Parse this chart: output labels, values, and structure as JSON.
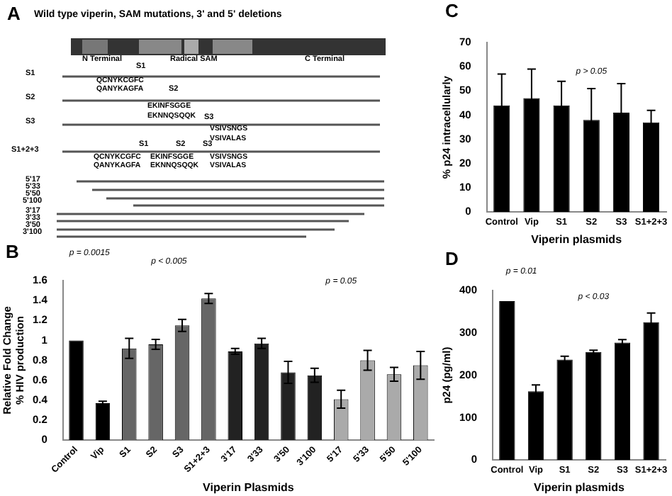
{
  "chart_data": [
    {
      "type": "other",
      "title": "A",
      "subtitle": "Wild type viperin, SAM mutations, 3' and 5' deletions",
      "annotations": [
        "N Terminal",
        "Radical SAM",
        "C Terminal",
        "S1",
        "S1",
        "QCNYKCGFC",
        "QANYKAGFA",
        "S2",
        "S2",
        "EKINFSGGE",
        "EKNNQSQQK",
        "S3",
        "S3",
        "VSIVSNGS",
        "VSIVALAS",
        "S1+2+3",
        "S1",
        "S2",
        "S3",
        "QCNYKCGFC",
        "EKINFSGGE",
        "VSIVSNGS",
        "QANYKAGFA",
        "EKNNQSQQK",
        "VSIVALAS",
        "5'17",
        "5'33",
        "5'50",
        "5'100",
        "3'17",
        "3'33",
        "3'50",
        "3'100"
      ]
    },
    {
      "type": "bar",
      "title": "B",
      "xlabel": "Viperin Plasmids",
      "ylabel": "Relative Fold Change\n% HIV production",
      "categories": [
        "Control",
        "Vip",
        "S1",
        "S2",
        "S3",
        "S1+2+3",
        "3'17",
        "3'33",
        "3'50",
        "3'100",
        "5'17",
        "5'33",
        "5'50",
        "5'100"
      ],
      "values": [
        1,
        0.37,
        0.92,
        0.96,
        1.15,
        1.42,
        0.89,
        0.97,
        0.68,
        0.65,
        0.41,
        0.8,
        0.66,
        0.75
      ],
      "colors": [
        "#000000",
        "#000000",
        "#666666",
        "#666666",
        "#666666",
        "#666666",
        "#222222",
        "#222222",
        "#222222",
        "#222222",
        "#aaaaaa",
        "#aaaaaa",
        "#aaaaaa",
        "#aaaaaa"
      ],
      "errors": [
        null,
        0.02,
        0.1,
        0.05,
        0.06,
        0.05,
        0.03,
        0.05,
        0.11,
        0.07,
        0.09,
        0.1,
        0.07,
        0.14
      ],
      "ylim": [
        0,
        1.6
      ],
      "yticks": [
        0,
        {
          "value": 0.2,
          "label": "0.2"
        },
        {
          "value": 0.4,
          "label": "0.4"
        },
        {
          "value": 0.6,
          "label": "0.6"
        },
        {
          "value": 0.8,
          "label": "0.8"
        },
        1,
        {
          "value": 1.2,
          "label": "1.2"
        },
        {
          "value": 1.4,
          "label": "1.4"
        },
        {
          "value": 1.6,
          "label": "1.6"
        }
      ],
      "annotations": [
        "p = 0.0015",
        "p < 0.005",
        "p = 0.05"
      ],
      "grid": false,
      "legend": false
    },
    {
      "type": "bar",
      "title": "C",
      "xlabel": "Viperin plasmids",
      "ylabel": "% p24 intracellularly",
      "categories": [
        "Control",
        "Vip",
        "S1",
        "S2",
        "S3",
        "S1+2+3"
      ],
      "values": [
        44,
        47,
        44,
        38,
        41,
        37
      ],
      "color": "#000000",
      "errors": [
        13,
        12,
        10,
        13,
        12,
        5
      ],
      "ylim": [
        0,
        70
      ],
      "yticks": [
        0,
        10,
        20,
        30,
        40,
        50,
        60,
        70
      ],
      "annotations": [
        "p > 0.05"
      ],
      "grid": false,
      "legend": false
    },
    {
      "type": "bar",
      "title": "D",
      "xlabel": "Viperin plasmids",
      "ylabel": "p24 (pg/ml)",
      "categories": [
        "Control",
        "Vip",
        "S1",
        "S2",
        "S3",
        "S1+2+3"
      ],
      "values": [
        375,
        162,
        237,
        255,
        277,
        325
      ],
      "color": "#000000",
      "errors": [
        null,
        15,
        8,
        4,
        7,
        22
      ],
      "ylim": [
        0,
        400
      ],
      "yticks": [
        0,
        100,
        200,
        300,
        400
      ],
      "annotations": [
        "p = 0.01",
        "p < 0.03"
      ],
      "grid": false,
      "legend": false
    }
  ]
}
